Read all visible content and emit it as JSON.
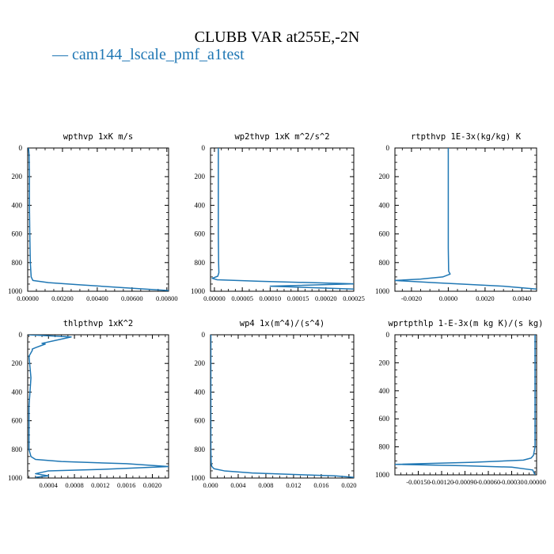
{
  "figure": {
    "title": "CLUBB VAR at255E,-2N",
    "legend_label": "cam144_lscale_pmf_a1test",
    "line_color": "#1f77b4"
  },
  "chart_data": [
    {
      "type": "line",
      "title": "wpthvp  1xK m/s",
      "xlim": [
        0,
        0.0081
      ],
      "ylim": [
        1000,
        0
      ],
      "xticks": [
        0,
        0.002,
        0.004,
        0.006,
        0.008
      ],
      "xtick_labels": [
        "0.00000",
        "0.00200",
        "0.00400",
        "0.00600",
        "0.00800"
      ],
      "yticks": [
        0,
        200,
        400,
        600,
        800,
        1000
      ],
      "ytick_labels": [
        "0",
        "200",
        "400",
        "600",
        "800",
        "1000"
      ],
      "series": [
        {
          "x": [
            5e-05,
            8e-05,
            0.0001,
            0.0001,
            0.00012,
            0.00015,
            0.0002,
            0.0003,
            0.0012,
            0.003,
            0.0055,
            0.0081
          ],
          "y": [
            0,
            50,
            200,
            400,
            600,
            800,
            900,
            925,
            940,
            955,
            975,
            995
          ]
        }
      ]
    },
    {
      "type": "line",
      "title": "wp2thvp  1xK m^2/s^2",
      "xlim": [
        -7e-06,
        0.00025
      ],
      "ylim": [
        1000,
        0
      ],
      "xticks": [
        0,
        5e-05,
        0.0001,
        0.00015,
        0.0002,
        0.00025
      ],
      "xtick_labels": [
        "0.00000",
        "0.00005",
        "0.00010",
        "0.00015",
        "0.00020",
        "0.00025"
      ],
      "yticks": [
        0,
        200,
        400,
        600,
        800,
        1000
      ],
      "ytick_labels": [
        "0",
        "200",
        "400",
        "600",
        "800",
        "1000"
      ],
      "series": [
        {
          "x": [
            7e-06,
            7e-06,
            7.5e-06,
            8e-06,
            6e-06,
            -4e-06,
            5e-06,
            8e-05,
            0.00025,
            0.0001,
            0.00025
          ],
          "y": [
            0,
            600,
            800,
            870,
            895,
            910,
            920,
            930,
            948,
            965,
            985
          ]
        }
      ]
    },
    {
      "type": "line",
      "title": "rtpthvp  1E-3x(kg/kg) K",
      "xlim": [
        -0.0029,
        0.0048
      ],
      "ylim": [
        1000,
        0
      ],
      "xticks": [
        -0.002,
        0,
        0.002,
        0.004
      ],
      "xtick_labels": [
        "-0.0020",
        "0.0000",
        "0.0020",
        "0.0040"
      ],
      "yticks": [
        0,
        200,
        400,
        600,
        800,
        1000
      ],
      "ytick_labels": [
        "0",
        "200",
        "400",
        "600",
        "800",
        "1000"
      ],
      "series": [
        {
          "x": [
            0,
            0,
            2e-05,
            0.0001,
            -0.0003,
            -0.0015,
            -0.0029,
            -0.0008,
            0.003,
            0.0048
          ],
          "y": [
            0,
            700,
            860,
            880,
            900,
            915,
            925,
            940,
            965,
            985
          ]
        }
      ]
    },
    {
      "type": "line",
      "title": "thlpthvp  1xK^2",
      "xlim": [
        8e-05,
        0.00225
      ],
      "ylim": [
        1000,
        0
      ],
      "xticks": [
        0.0004,
        0.0008,
        0.0012,
        0.0016,
        0.002
      ],
      "xtick_labels": [
        "0.0004",
        "0.0008",
        "0.0012",
        "0.0016",
        "0.0020"
      ],
      "yticks": [
        0,
        200,
        400,
        600,
        800,
        1000
      ],
      "ytick_labels": [
        "0",
        "200",
        "400",
        "600",
        "800",
        "1000"
      ],
      "series": [
        {
          "x": [
            9e-05,
            0.00075,
            0.0005,
            0.00035,
            0.0003,
            0.00035,
            0.0002,
            0.00015,
            0.00015,
            0.0001,
            0.00013,
            0.0001,
            0.0001,
            0.00013,
            0.0002,
            0.0006,
            0.0016,
            0.00225,
            0.0012,
            0.0004,
            0.0002,
            0.0004,
            0.0002
          ],
          "y": [
            0,
            15,
            40,
            55,
            60,
            65,
            90,
            100,
            110,
            150,
            300,
            500,
            800,
            850,
            870,
            885,
            900,
            920,
            940,
            950,
            970,
            985,
            995
          ]
        }
      ]
    },
    {
      "type": "line",
      "title": "wp4  1x(m^4)/(s^4)",
      "xlim": [
        0,
        0.0207
      ],
      "ylim": [
        1000,
        0
      ],
      "xticks": [
        0,
        0.004,
        0.008,
        0.012,
        0.016,
        0.02
      ],
      "xtick_labels": [
        "0.000",
        "0.004",
        "0.008",
        "0.012",
        "0.016",
        "0.020"
      ],
      "yticks": [
        0,
        200,
        400,
        600,
        800,
        1000
      ],
      "ytick_labels": [
        "0",
        "200",
        "400",
        "600",
        "800",
        "1000"
      ],
      "series": [
        {
          "x": [
            5e-05,
            5e-05,
            0.0001,
            0.0002,
            0.0005,
            0.002,
            0.006,
            0.012,
            0.018,
            0.0207
          ],
          "y": [
            0,
            800,
            900,
            920,
            935,
            950,
            965,
            975,
            985,
            995
          ]
        }
      ]
    },
    {
      "type": "line",
      "title": "wprtpthlp  1-E-3x(m kg K)/(s kg)",
      "xlim": [
        -0.0018,
        2e-05
      ],
      "ylim": [
        1000,
        0
      ],
      "xticks": [
        -0.0015,
        -0.0012,
        -0.0009,
        -0.0006,
        -0.0003,
        0
      ],
      "xtick_labels": [
        "-0.00150",
        "-0.00120",
        "-0.00090",
        "-0.00060",
        "-0.00030",
        "0.00000"
      ],
      "yticks": [
        0,
        200,
        400,
        600,
        800,
        1000
      ],
      "ytick_labels": [
        "0",
        "200",
        "400",
        "600",
        "800",
        "1000"
      ],
      "series": [
        {
          "x": [
            0,
            0,
            -2e-05,
            -5e-05,
            -0.00015,
            -0.0008,
            -0.0018,
            -0.0009,
            -0.0003,
            -3e-05,
            0
          ],
          "y": [
            0,
            800,
            860,
            880,
            895,
            910,
            925,
            935,
            945,
            965,
            1000
          ]
        }
      ]
    }
  ]
}
